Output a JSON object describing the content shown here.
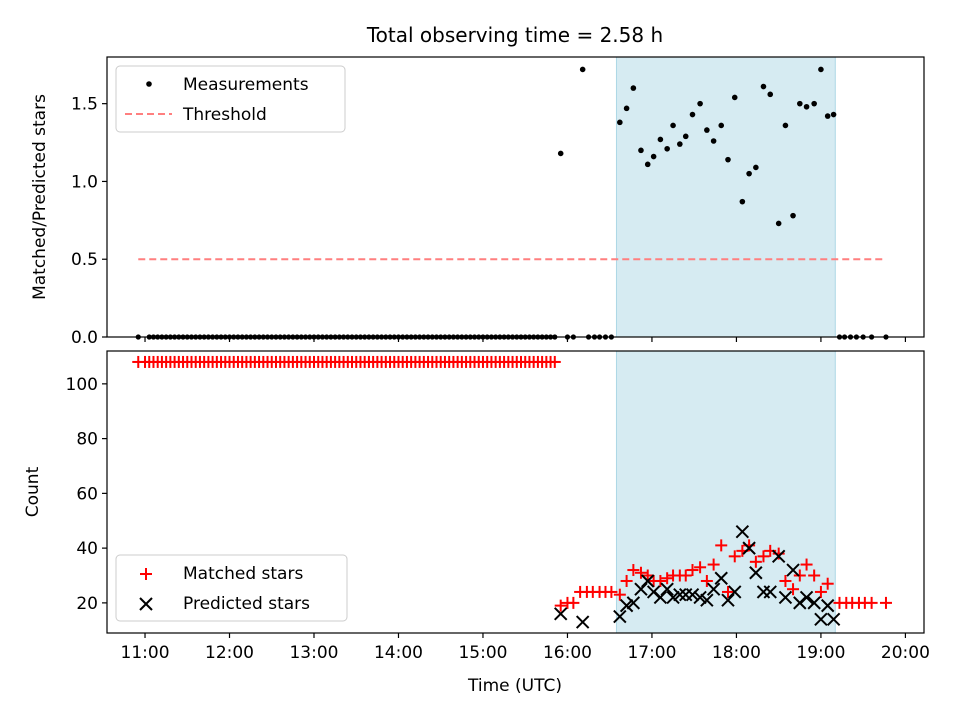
{
  "title": "Total observing time = 2.58 h",
  "x_axis": {
    "label": "Time (UTC)",
    "range_hours": [
      10.55,
      20.22
    ],
    "tick_labels": [
      "11:00",
      "12:00",
      "13:00",
      "14:00",
      "15:00",
      "16:00",
      "17:00",
      "18:00",
      "19:00",
      "20:00"
    ]
  },
  "top_panel": {
    "ylabel": "Matched/Predicted stars",
    "ylim": [
      0,
      1.8
    ],
    "y_tick_labels": [
      "0.0",
      "0.5",
      "1.0",
      "1.5"
    ],
    "legend": {
      "position": "upper left",
      "items": [
        "Measurements",
        "Threshold"
      ]
    }
  },
  "bottom_panel": {
    "ylabel": "Count",
    "ylim": [
      9,
      112
    ],
    "y_tick_labels": [
      "20",
      "40",
      "60",
      "80",
      "100"
    ],
    "legend": {
      "position": "lower left",
      "items": [
        "Matched stars",
        "Predicted stars"
      ]
    }
  },
  "colors": {
    "measurements": "#000000",
    "threshold": "#ff7f7f",
    "matched": "#ff0000",
    "predicted": "#000000",
    "observing_window": "#add8e6"
  },
  "chart_data": [
    {
      "type": "scatter",
      "panel": "top",
      "title": "Total observing time = 2.58 h",
      "xlabel": "",
      "ylabel": "Matched/Predicted stars",
      "ylim": [
        0,
        1.8
      ],
      "shaded_interval": [
        16.58,
        19.17
      ],
      "threshold": {
        "name": "Threshold",
        "y": 0.5,
        "x_range": [
          10.92,
          19.77
        ]
      },
      "series": [
        {
          "name": "Measurements",
          "x_zero": [
            10.92,
            11.05,
            11.1,
            11.15,
            11.2,
            11.25,
            11.3,
            11.35,
            11.4,
            11.45,
            11.5,
            11.55,
            11.6,
            11.65,
            11.7,
            11.75,
            11.8,
            11.85,
            11.9,
            11.95,
            12.0,
            12.05,
            12.1,
            12.15,
            12.2,
            12.25,
            12.3,
            12.35,
            12.4,
            12.45,
            12.5,
            12.55,
            12.6,
            12.65,
            12.7,
            12.75,
            12.8,
            12.85,
            12.9,
            12.95,
            13.0,
            13.05,
            13.1,
            13.15,
            13.2,
            13.25,
            13.3,
            13.35,
            13.4,
            13.45,
            13.5,
            13.55,
            13.6,
            13.65,
            13.7,
            13.75,
            13.8,
            13.85,
            13.9,
            13.95,
            14.0,
            14.05,
            14.1,
            14.15,
            14.2,
            14.25,
            14.3,
            14.35,
            14.4,
            14.45,
            14.5,
            14.55,
            14.6,
            14.65,
            14.7,
            14.75,
            14.8,
            14.85,
            14.9,
            14.95,
            15.0,
            15.05,
            15.1,
            15.15,
            15.2,
            15.25,
            15.3,
            15.35,
            15.4,
            15.45,
            15.5,
            15.55,
            15.6,
            15.65,
            15.7,
            15.75,
            15.8,
            15.85,
            16.0,
            16.07,
            16.25,
            16.32,
            16.38,
            16.45,
            16.52,
            19.22,
            19.28,
            19.35,
            19.42,
            19.5,
            19.6,
            19.77
          ],
          "points": [
            [
              15.92,
              1.18
            ],
            [
              16.18,
              1.72
            ],
            [
              16.62,
              1.38
            ],
            [
              16.7,
              1.47
            ],
            [
              16.78,
              1.6
            ],
            [
              16.87,
              1.2
            ],
            [
              16.95,
              1.11
            ],
            [
              17.02,
              1.16
            ],
            [
              17.1,
              1.27
            ],
            [
              17.18,
              1.21
            ],
            [
              17.25,
              1.36
            ],
            [
              17.33,
              1.24
            ],
            [
              17.4,
              1.29
            ],
            [
              17.48,
              1.43
            ],
            [
              17.57,
              1.5
            ],
            [
              17.65,
              1.33
            ],
            [
              17.73,
              1.26
            ],
            [
              17.82,
              1.36
            ],
            [
              17.9,
              1.14
            ],
            [
              17.98,
              1.54
            ],
            [
              18.07,
              0.87
            ],
            [
              18.15,
              1.05
            ],
            [
              18.23,
              1.09
            ],
            [
              18.32,
              1.61
            ],
            [
              18.4,
              1.56
            ],
            [
              18.5,
              0.73
            ],
            [
              18.58,
              1.36
            ],
            [
              18.67,
              0.78
            ],
            [
              18.75,
              1.5
            ],
            [
              18.83,
              1.48
            ],
            [
              18.92,
              1.5
            ],
            [
              19.0,
              1.72
            ],
            [
              19.08,
              1.42
            ],
            [
              19.15,
              1.43
            ]
          ]
        }
      ]
    },
    {
      "type": "scatter",
      "panel": "bottom",
      "xlabel": "Time (UTC)",
      "ylabel": "Count",
      "ylim": [
        9,
        112
      ],
      "shaded_interval": [
        16.58,
        19.17
      ],
      "series": [
        {
          "name": "Matched stars",
          "constant_segments": [
            {
              "y": 108,
              "x": [
                10.92,
                11.0,
                11.05,
                11.1,
                11.15,
                11.2,
                11.25,
                11.3,
                11.35,
                11.4,
                11.45,
                11.5,
                11.55,
                11.6,
                11.65,
                11.7,
                11.75,
                11.8,
                11.85,
                11.9,
                11.95,
                12.0,
                12.05,
                12.1,
                12.15,
                12.2,
                12.25,
                12.3,
                12.35,
                12.4,
                12.45,
                12.5,
                12.55,
                12.6,
                12.65,
                12.7,
                12.75,
                12.8,
                12.85,
                12.9,
                12.95,
                13.0,
                13.05,
                13.1,
                13.15,
                13.2,
                13.25,
                13.3,
                13.35,
                13.4,
                13.45,
                13.5,
                13.55,
                13.6,
                13.65,
                13.7,
                13.75,
                13.8,
                13.85,
                13.9,
                13.95,
                14.0,
                14.05,
                14.1,
                14.15,
                14.2,
                14.25,
                14.3,
                14.35,
                14.4,
                14.45,
                14.5,
                14.55,
                14.6,
                14.65,
                14.7,
                14.75,
                14.8,
                14.85,
                14.9,
                14.95,
                15.0,
                15.05,
                15.1,
                15.15,
                15.2,
                15.25,
                15.3,
                15.35,
                15.4,
                15.45,
                15.5,
                15.55,
                15.6,
                15.65,
                15.7,
                15.75,
                15.8,
                15.85
              ]
            },
            {
              "y": 20,
              "x": [
                19.22,
                19.3,
                19.37,
                19.45,
                19.52,
                19.6,
                19.77
              ]
            }
          ],
          "points": [
            [
              15.92,
              19
            ],
            [
              16.0,
              20
            ],
            [
              16.07,
              20
            ],
            [
              16.15,
              24
            ],
            [
              16.23,
              24
            ],
            [
              16.3,
              24
            ],
            [
              16.38,
              24
            ],
            [
              16.45,
              24
            ],
            [
              16.52,
              24
            ],
            [
              16.62,
              23
            ],
            [
              16.7,
              28
            ],
            [
              16.78,
              32
            ],
            [
              16.87,
              31
            ],
            [
              16.95,
              30
            ],
            [
              17.02,
              28
            ],
            [
              17.1,
              28
            ],
            [
              17.18,
              29
            ],
            [
              17.25,
              30
            ],
            [
              17.33,
              30
            ],
            [
              17.4,
              30
            ],
            [
              17.48,
              32
            ],
            [
              17.57,
              33
            ],
            [
              17.65,
              28
            ],
            [
              17.73,
              34
            ],
            [
              17.82,
              41
            ],
            [
              17.9,
              24
            ],
            [
              17.98,
              37
            ],
            [
              18.07,
              39
            ],
            [
              18.15,
              41
            ],
            [
              18.23,
              35
            ],
            [
              18.32,
              37
            ],
            [
              18.4,
              39
            ],
            [
              18.5,
              38
            ],
            [
              18.58,
              28
            ],
            [
              18.67,
              25
            ],
            [
              18.75,
              30
            ],
            [
              18.83,
              34
            ],
            [
              18.92,
              30
            ],
            [
              19.0,
              24
            ],
            [
              19.08,
              27
            ]
          ]
        },
        {
          "name": "Predicted stars",
          "points": [
            [
              15.92,
              16
            ],
            [
              16.18,
              13
            ],
            [
              16.62,
              15
            ],
            [
              16.7,
              19
            ],
            [
              16.78,
              20
            ],
            [
              16.87,
              25
            ],
            [
              16.95,
              28
            ],
            [
              17.02,
              24
            ],
            [
              17.1,
              22
            ],
            [
              17.18,
              25
            ],
            [
              17.25,
              22
            ],
            [
              17.33,
              23
            ],
            [
              17.4,
              23
            ],
            [
              17.48,
              23
            ],
            [
              17.57,
              22
            ],
            [
              17.65,
              21
            ],
            [
              17.73,
              25
            ],
            [
              17.82,
              29
            ],
            [
              17.9,
              21
            ],
            [
              17.98,
              24
            ],
            [
              18.07,
              46
            ],
            [
              18.15,
              40
            ],
            [
              18.23,
              31
            ],
            [
              18.32,
              24
            ],
            [
              18.4,
              24
            ],
            [
              18.5,
              37
            ],
            [
              18.58,
              22
            ],
            [
              18.67,
              32
            ],
            [
              18.75,
              20
            ],
            [
              18.83,
              22
            ],
            [
              18.92,
              20
            ],
            [
              19.0,
              14
            ],
            [
              19.08,
              19
            ],
            [
              19.15,
              14
            ]
          ]
        }
      ]
    }
  ]
}
